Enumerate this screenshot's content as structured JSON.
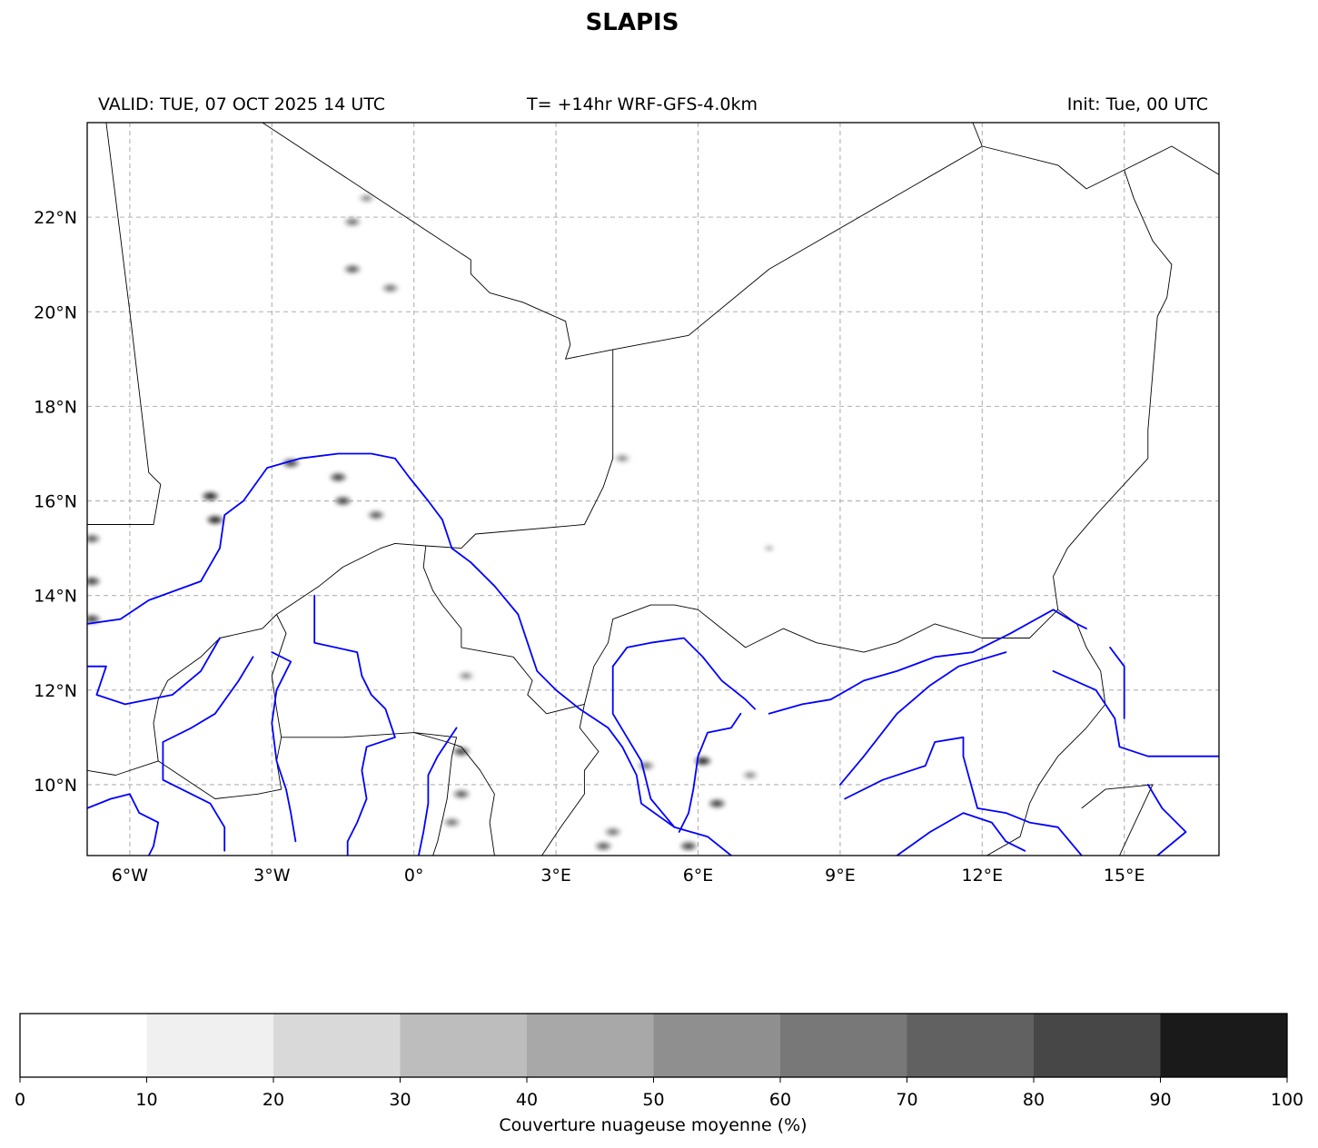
{
  "title": "SLAPIS",
  "subtitle": {
    "valid": "VALID: TUE, 07 OCT 2025 14 UTC",
    "forecast": "T= +14hr WRF-GFS-4.0km",
    "init": "Init: Tue, 00 UTC"
  },
  "map": {
    "lon_range": [
      -6.9,
      17.0
    ],
    "lat_range": [
      8.5,
      24.0
    ],
    "lon_ticks": [
      {
        "value": -6,
        "label": "6°W"
      },
      {
        "value": -3,
        "label": "3°W"
      },
      {
        "value": 0,
        "label": "0°"
      },
      {
        "value": 3,
        "label": "3°E"
      },
      {
        "value": 6,
        "label": "6°E"
      },
      {
        "value": 9,
        "label": "9°E"
      },
      {
        "value": 12,
        "label": "12°E"
      },
      {
        "value": 15,
        "label": "15°E"
      }
    ],
    "lat_ticks": [
      {
        "value": 10,
        "label": "10°N"
      },
      {
        "value": 12,
        "label": "12°N"
      },
      {
        "value": 14,
        "label": "14°N"
      },
      {
        "value": 16,
        "label": "16°N"
      },
      {
        "value": 18,
        "label": "18°N"
      },
      {
        "value": 20,
        "label": "20°N"
      },
      {
        "value": 22,
        "label": "22°N"
      }
    ],
    "grid": true,
    "borders": [
      [
        [
          -6.5,
          24.0
        ],
        [
          -6.0,
          20.0
        ],
        [
          -5.6,
          16.6
        ],
        [
          -5.35,
          16.35
        ],
        [
          -5.5,
          15.5
        ],
        [
          -6.9,
          15.5
        ]
      ],
      [
        [
          -3.2,
          24.0
        ],
        [
          1.2,
          21.1
        ],
        [
          1.2,
          20.8
        ],
        [
          1.6,
          20.4
        ],
        [
          2.3,
          20.2
        ],
        [
          3.2,
          19.8
        ],
        [
          3.3,
          19.3
        ],
        [
          3.2,
          19.0
        ],
        [
          4.2,
          19.2
        ],
        [
          5.8,
          19.5
        ],
        [
          7.5,
          20.9
        ],
        [
          12.0,
          23.5
        ],
        [
          13.6,
          23.1
        ],
        [
          14.2,
          22.6
        ],
        [
          15.0,
          23.0
        ],
        [
          16.0,
          23.5
        ],
        [
          17.0,
          22.9
        ]
      ],
      [
        [
          11.8,
          24.0
        ],
        [
          12.0,
          23.5
        ]
      ],
      [
        [
          4.2,
          19.2
        ],
        [
          4.2,
          16.9
        ],
        [
          4.0,
          16.3
        ],
        [
          3.6,
          15.5
        ],
        [
          1.3,
          15.3
        ],
        [
          1.0,
          15.0
        ],
        [
          0.25,
          15.05
        ],
        [
          -0.4,
          15.1
        ],
        [
          -0.7,
          15.0
        ],
        [
          -1.5,
          14.6
        ],
        [
          -2.0,
          14.2
        ],
        [
          -2.9,
          13.6
        ],
        [
          -3.2,
          13.3
        ],
        [
          -4.1,
          13.1
        ],
        [
          -4.5,
          12.7
        ],
        [
          -5.2,
          12.2
        ],
        [
          -5.4,
          11.8
        ],
        [
          -5.5,
          11.3
        ],
        [
          -5.4,
          10.5
        ],
        [
          -6.3,
          10.2
        ],
        [
          -6.9,
          10.3
        ]
      ],
      [
        [
          0.25,
          15.05
        ],
        [
          0.2,
          14.6
        ],
        [
          0.4,
          14.1
        ],
        [
          0.6,
          13.8
        ],
        [
          1.0,
          13.3
        ],
        [
          1.0,
          12.9
        ],
        [
          2.1,
          12.7
        ],
        [
          2.5,
          12.2
        ],
        [
          2.4,
          11.9
        ],
        [
          2.8,
          11.5
        ]
      ],
      [
        [
          2.8,
          11.5
        ],
        [
          3.6,
          11.7
        ],
        [
          3.5,
          11.2
        ],
        [
          3.9,
          10.7
        ],
        [
          3.6,
          10.3
        ],
        [
          3.6,
          9.8
        ],
        [
          3.1,
          9.1
        ],
        [
          2.7,
          8.5
        ]
      ],
      [
        [
          3.6,
          11.7
        ],
        [
          3.8,
          12.5
        ],
        [
          4.1,
          13.0
        ],
        [
          4.2,
          13.5
        ],
        [
          5.0,
          13.8
        ],
        [
          5.5,
          13.8
        ],
        [
          6.0,
          13.7
        ],
        [
          6.5,
          13.3
        ],
        [
          7.0,
          12.9
        ],
        [
          7.8,
          13.3
        ],
        [
          8.5,
          13.0
        ],
        [
          9.5,
          12.8
        ],
        [
          10.2,
          13.0
        ],
        [
          11.0,
          13.4
        ],
        [
          12.0,
          13.1
        ],
        [
          13.0,
          13.1
        ],
        [
          13.6,
          13.7
        ]
      ],
      [
        [
          13.6,
          13.7
        ],
        [
          14.0,
          13.4
        ],
        [
          14.2,
          12.9
        ],
        [
          14.5,
          12.4
        ],
        [
          14.6,
          11.7
        ],
        [
          14.2,
          11.2
        ],
        [
          13.6,
          10.6
        ],
        [
          13.2,
          10.0
        ],
        [
          13.0,
          9.6
        ],
        [
          12.8,
          8.9
        ],
        [
          12.1,
          8.5
        ]
      ],
      [
        [
          13.6,
          13.7
        ],
        [
          13.5,
          14.4
        ],
        [
          13.8,
          15.0
        ],
        [
          14.4,
          15.7
        ],
        [
          15.5,
          16.9
        ],
        [
          15.5,
          17.5
        ],
        [
          15.7,
          19.9
        ],
        [
          15.9,
          20.3
        ],
        [
          16.0,
          21.0
        ],
        [
          15.6,
          21.5
        ],
        [
          15.2,
          22.4
        ],
        [
          15.0,
          23.0
        ]
      ],
      [
        [
          14.1,
          9.5
        ],
        [
          14.6,
          9.9
        ],
        [
          15.6,
          10.0
        ],
        [
          14.9,
          8.5
        ]
      ],
      [
        [
          -2.8,
          11.0
        ],
        [
          -1.5,
          11.0
        ],
        [
          0.0,
          11.1
        ],
        [
          0.9,
          11.0
        ],
        [
          0.8,
          10.6
        ],
        [
          0.7,
          9.7
        ],
        [
          0.5,
          8.8
        ],
        [
          0.4,
          8.5
        ]
      ],
      [
        [
          -2.9,
          13.6
        ],
        [
          -2.7,
          13.2
        ],
        [
          -3.0,
          12.3
        ],
        [
          -2.9,
          11.6
        ],
        [
          -2.8,
          11.0
        ],
        [
          -2.9,
          10.5
        ],
        [
          -2.8,
          9.9
        ],
        [
          -3.3,
          9.8
        ],
        [
          -4.2,
          9.7
        ],
        [
          -4.8,
          10.1
        ],
        [
          -5.4,
          10.5
        ]
      ],
      [
        [
          0.0,
          11.1
        ],
        [
          0.7,
          10.9
        ],
        [
          1.0,
          10.8
        ],
        [
          1.4,
          10.3
        ],
        [
          1.7,
          9.8
        ],
        [
          1.6,
          9.2
        ],
        [
          1.7,
          8.5
        ]
      ]
    ],
    "rivers": [
      [
        [
          -6.9,
          13.4
        ],
        [
          -6.2,
          13.5
        ],
        [
          -5.6,
          13.9
        ],
        [
          -4.5,
          14.3
        ],
        [
          -4.1,
          15.0
        ],
        [
          -4.0,
          15.7
        ],
        [
          -3.6,
          16.0
        ],
        [
          -3.1,
          16.7
        ],
        [
          -2.4,
          16.9
        ],
        [
          -1.6,
          17.0
        ],
        [
          -0.9,
          17.0
        ],
        [
          -0.4,
          16.9
        ],
        [
          -0.1,
          16.5
        ],
        [
          0.3,
          16.0
        ],
        [
          0.6,
          15.6
        ],
        [
          0.8,
          15.0
        ],
        [
          1.2,
          14.7
        ],
        [
          1.7,
          14.2
        ],
        [
          2.2,
          13.6
        ],
        [
          2.4,
          13.0
        ],
        [
          2.6,
          12.4
        ],
        [
          3.0,
          12.0
        ],
        [
          3.5,
          11.6
        ],
        [
          4.1,
          11.2
        ],
        [
          4.4,
          10.8
        ],
        [
          4.7,
          10.2
        ],
        [
          4.8,
          9.6
        ],
        [
          5.5,
          9.1
        ],
        [
          6.2,
          8.9
        ],
        [
          6.7,
          8.5
        ]
      ],
      [
        [
          -2.1,
          14.0
        ],
        [
          -2.1,
          13.0
        ],
        [
          -1.2,
          12.8
        ],
        [
          -1.1,
          12.3
        ],
        [
          -0.9,
          11.9
        ],
        [
          -0.6,
          11.6
        ],
        [
          -0.4,
          11.0
        ],
        [
          -1.0,
          10.8
        ],
        [
          -1.1,
          10.3
        ],
        [
          -1.0,
          9.7
        ],
        [
          -1.2,
          9.2
        ],
        [
          -1.4,
          8.8
        ],
        [
          -1.4,
          8.5
        ]
      ],
      [
        [
          -3.0,
          12.8
        ],
        [
          -2.6,
          12.6
        ],
        [
          -2.9,
          12.0
        ],
        [
          -3.0,
          11.3
        ],
        [
          -2.9,
          10.5
        ],
        [
          -2.7,
          9.9
        ],
        [
          -2.6,
          9.4
        ],
        [
          -2.5,
          8.8
        ]
      ],
      [
        [
          -3.4,
          12.7
        ],
        [
          -3.7,
          12.2
        ],
        [
          -4.2,
          11.5
        ],
        [
          -4.7,
          11.2
        ],
        [
          -5.3,
          10.9
        ],
        [
          -5.3,
          10.1
        ],
        [
          -4.7,
          9.8
        ],
        [
          -4.3,
          9.6
        ],
        [
          -4.0,
          9.1
        ],
        [
          -4.0,
          8.6
        ]
      ],
      [
        [
          -4.1,
          13.1
        ],
        [
          -4.5,
          12.4
        ],
        [
          -5.1,
          11.9
        ],
        [
          -6.1,
          11.7
        ],
        [
          -6.7,
          11.9
        ],
        [
          -6.5,
          12.5
        ],
        [
          -6.9,
          12.5
        ]
      ],
      [
        [
          -6.9,
          9.5
        ],
        [
          -6.4,
          9.7
        ],
        [
          -6.0,
          9.8
        ],
        [
          -5.8,
          9.4
        ],
        [
          -5.4,
          9.2
        ],
        [
          -5.5,
          8.7
        ],
        [
          -5.6,
          8.5
        ]
      ],
      [
        [
          0.9,
          11.2
        ],
        [
          0.5,
          10.6
        ],
        [
          0.3,
          10.2
        ],
        [
          0.3,
          9.6
        ],
        [
          0.2,
          9.0
        ],
        [
          0.1,
          8.5
        ]
      ],
      [
        [
          4.2,
          12.5
        ],
        [
          4.5,
          12.9
        ],
        [
          5.0,
          13.0
        ],
        [
          5.7,
          13.1
        ],
        [
          6.1,
          12.7
        ],
        [
          6.5,
          12.2
        ],
        [
          7.0,
          11.8
        ],
        [
          7.2,
          11.6
        ]
      ],
      [
        [
          4.2,
          12.5
        ],
        [
          4.2,
          11.5
        ],
        [
          4.5,
          11.0
        ],
        [
          4.8,
          10.5
        ],
        [
          5.0,
          9.7
        ],
        [
          5.5,
          9.1
        ]
      ],
      [
        [
          6.9,
          11.5
        ],
        [
          6.7,
          11.2
        ],
        [
          6.2,
          11.1
        ],
        [
          6.0,
          10.6
        ],
        [
          5.9,
          9.9
        ],
        [
          5.8,
          9.4
        ],
        [
          5.6,
          9.0
        ]
      ],
      [
        [
          7.5,
          11.5
        ],
        [
          8.2,
          11.7
        ],
        [
          8.8,
          11.8
        ],
        [
          9.5,
          12.2
        ],
        [
          10.2,
          12.4
        ],
        [
          11.0,
          12.7
        ],
        [
          11.8,
          12.8
        ],
        [
          12.6,
          13.2
        ],
        [
          13.5,
          13.7
        ],
        [
          14.0,
          13.4
        ],
        [
          14.2,
          13.3
        ]
      ],
      [
        [
          9.0,
          10.0
        ],
        [
          9.5,
          10.6
        ],
        [
          10.2,
          11.5
        ],
        [
          10.9,
          12.1
        ],
        [
          11.5,
          12.5
        ],
        [
          12.5,
          12.8
        ]
      ],
      [
        [
          9.1,
          9.7
        ],
        [
          9.9,
          10.1
        ],
        [
          10.8,
          10.4
        ],
        [
          11.0,
          10.9
        ],
        [
          11.6,
          11.0
        ],
        [
          11.6,
          10.6
        ],
        [
          11.9,
          9.5
        ],
        [
          12.5,
          9.4
        ],
        [
          13.0,
          9.2
        ],
        [
          13.6,
          9.1
        ],
        [
          14.1,
          8.5
        ]
      ],
      [
        [
          10.2,
          8.5
        ],
        [
          10.9,
          9.0
        ],
        [
          11.6,
          9.4
        ],
        [
          12.2,
          9.2
        ],
        [
          12.5,
          8.8
        ],
        [
          12.9,
          8.6
        ]
      ],
      [
        [
          13.5,
          12.4
        ],
        [
          14.4,
          12.0
        ],
        [
          14.8,
          11.4
        ],
        [
          14.9,
          10.8
        ],
        [
          15.5,
          10.6
        ],
        [
          16.3,
          10.6
        ],
        [
          17.0,
          10.6
        ]
      ],
      [
        [
          15.5,
          10.0
        ],
        [
          15.8,
          9.5
        ],
        [
          16.3,
          9.0
        ],
        [
          15.7,
          8.5
        ]
      ],
      [
        [
          14.7,
          12.9
        ],
        [
          15.0,
          12.5
        ],
        [
          15.0,
          11.4
        ]
      ]
    ],
    "cloud_cells": [
      {
        "lon": -4.3,
        "lat": 16.1,
        "pct": 95
      },
      {
        "lon": -4.2,
        "lat": 15.6,
        "pct": 90
      },
      {
        "lon": -2.6,
        "lat": 16.8,
        "pct": 80
      },
      {
        "lon": -1.6,
        "lat": 16.5,
        "pct": 80
      },
      {
        "lon": -1.5,
        "lat": 16.0,
        "pct": 85
      },
      {
        "lon": -0.8,
        "lat": 15.7,
        "pct": 75
      },
      {
        "lon": -6.8,
        "lat": 14.3,
        "pct": 85
      },
      {
        "lon": -6.8,
        "lat": 15.2,
        "pct": 70
      },
      {
        "lon": -6.8,
        "lat": 13.5,
        "pct": 80
      },
      {
        "lon": -1.3,
        "lat": 21.9,
        "pct": 60
      },
      {
        "lon": -1.3,
        "lat": 20.9,
        "pct": 70
      },
      {
        "lon": -0.5,
        "lat": 20.5,
        "pct": 60
      },
      {
        "lon": -1.0,
        "lat": 22.4,
        "pct": 55
      },
      {
        "lon": 1.0,
        "lat": 10.7,
        "pct": 85
      },
      {
        "lon": 1.0,
        "lat": 9.8,
        "pct": 75
      },
      {
        "lon": 0.8,
        "lat": 9.2,
        "pct": 65
      },
      {
        "lon": 6.1,
        "lat": 10.5,
        "pct": 95
      },
      {
        "lon": 6.4,
        "lat": 9.6,
        "pct": 80
      },
      {
        "lon": 5.8,
        "lat": 8.7,
        "pct": 80
      },
      {
        "lon": 4.0,
        "lat": 8.7,
        "pct": 75
      },
      {
        "lon": 4.2,
        "lat": 9.0,
        "pct": 60
      },
      {
        "lon": 4.4,
        "lat": 16.9,
        "pct": 55
      },
      {
        "lon": 7.5,
        "lat": 15.0,
        "pct": 30
      },
      {
        "lon": 1.1,
        "lat": 12.3,
        "pct": 55
      },
      {
        "lon": 4.9,
        "lat": 10.4,
        "pct": 60
      },
      {
        "lon": 7.1,
        "lat": 10.2,
        "pct": 55
      }
    ]
  },
  "colorbar": {
    "ticks": [
      "0",
      "10",
      "20",
      "30",
      "40",
      "50",
      "60",
      "70",
      "80",
      "90",
      "100"
    ],
    "colors": [
      "#ffffff",
      "#f0f0f0",
      "#d9d9d9",
      "#bdbdbd",
      "#a8a8a8",
      "#8f8f8f",
      "#787878",
      "#616161",
      "#474747",
      "#1a1a1a"
    ],
    "label": "Couverture nuageuse moyenne (%)"
  },
  "colors": {
    "river": "#0000ff",
    "border": "#000000",
    "grid": "#b0b0b0"
  }
}
